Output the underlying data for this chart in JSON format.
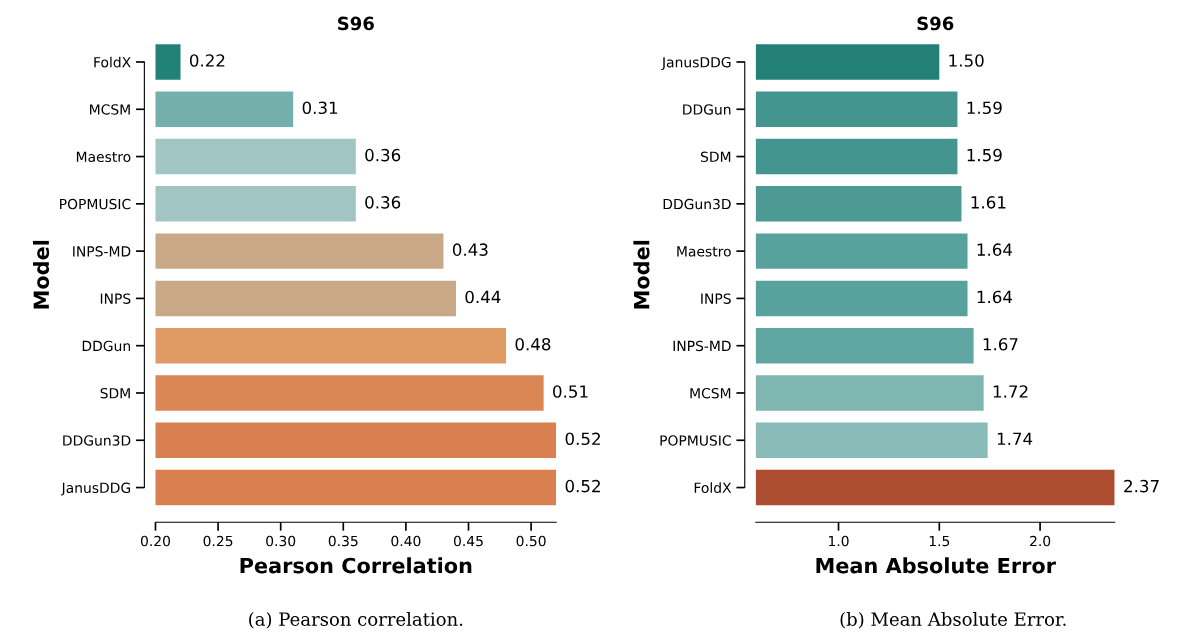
{
  "chart_data": [
    {
      "type": "bar",
      "orientation": "horizontal",
      "title": "S96",
      "xlabel": "Pearson Correlation",
      "ylabel": "Model",
      "categories": [
        "FoldX",
        "MCSM",
        "Maestro",
        "POPMUSIC",
        "INPS-MD",
        "INPS",
        "DDGun",
        "SDM",
        "DDGun3D",
        "JanusDDG"
      ],
      "values": [
        0.22,
        0.31,
        0.36,
        0.36,
        0.43,
        0.44,
        0.48,
        0.51,
        0.52,
        0.52
      ],
      "value_labels": [
        "0.22",
        "0.31",
        "0.36",
        "0.36",
        "0.43",
        "0.44",
        "0.48",
        "0.51",
        "0.52",
        "0.52"
      ],
      "colors": [
        "#22827a",
        "#74b0ab",
        "#a1c5c2",
        "#a1c5c2",
        "#c8a886",
        "#c8a886",
        "#e09a64",
        "#da8755",
        "#d98050",
        "#d98050"
      ],
      "xlim": [
        0.2,
        0.52
      ],
      "xticks": [
        "0.20",
        "0.25",
        "0.30",
        "0.35",
        "0.40",
        "0.45",
        "0.50"
      ],
      "annotations": [
        "(a) Pearson correlation."
      ],
      "grid": false,
      "legend": false
    },
    {
      "type": "bar",
      "orientation": "horizontal",
      "title": "S96",
      "xlabel": "Mean Absolute Error",
      "ylabel": "Model",
      "categories": [
        "JanusDDG",
        "DDGun",
        "SDM",
        "DDGun3D",
        "Maestro",
        "INPS",
        "INPS-MD",
        "MCSM",
        "POPMUSIC",
        "FoldX"
      ],
      "values": [
        1.5,
        1.59,
        1.59,
        1.61,
        1.64,
        1.64,
        1.67,
        1.72,
        1.74,
        2.37
      ],
      "value_labels": [
        "1.50",
        "1.59",
        "1.59",
        "1.61",
        "1.64",
        "1.64",
        "1.67",
        "1.72",
        "1.74",
        "2.37"
      ],
      "colors": [
        "#238079",
        "#44958f",
        "#44958f",
        "#4d9a95",
        "#58a29d",
        "#58a29d",
        "#60a6a1",
        "#7fb6b2",
        "#89bcb9",
        "#ad4d2f"
      ],
      "xlim": [
        0.59,
        2.37
      ],
      "xticks": [
        "1.0",
        "1.5",
        "2.0"
      ],
      "annotations": [
        "(b) Mean Absolute Error."
      ],
      "grid": false,
      "legend": false
    }
  ]
}
